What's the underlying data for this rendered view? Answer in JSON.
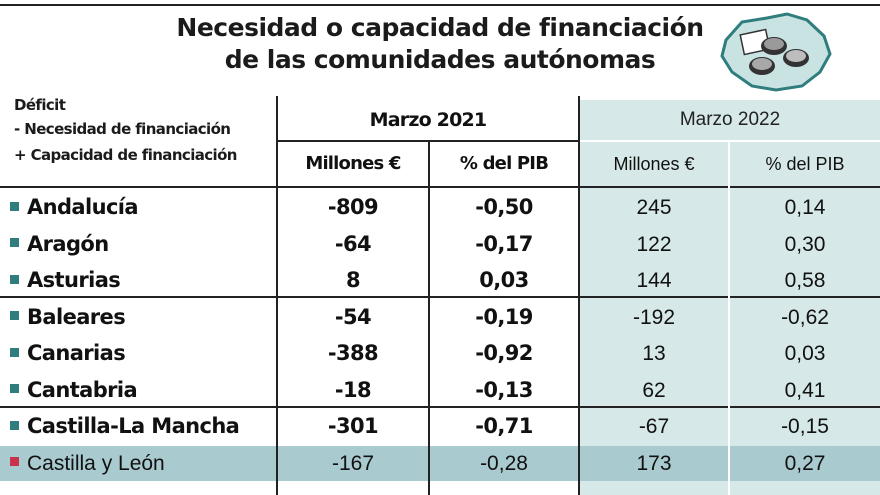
{
  "title": {
    "line1": "Necesidad o capacidad de financiación",
    "line2": "de las comunidades autónomas"
  },
  "legend": {
    "deficit": "Déficit",
    "negative": "- Necesidad de financiación",
    "positive": "+ Capacidad de financiación"
  },
  "groups": {
    "first": "Marzo 2021",
    "second": "Marzo 2022"
  },
  "columns": {
    "millions": "Millones €",
    "pib": "% del PIB"
  },
  "colors": {
    "shade": "#d6e8e8",
    "highlight": "#a9cbcf",
    "bullet": "#2f7d7d",
    "highlight_bullet": "#c8334a"
  },
  "rows": [
    {
      "name": "Andalucía",
      "m2021": "-809",
      "p2021": "-0,50",
      "m2022": "245",
      "p2022": "0,14"
    },
    {
      "name": "Aragón",
      "m2021": "-64",
      "p2021": "-0,17",
      "m2022": "122",
      "p2022": "0,30"
    },
    {
      "name": "Asturias",
      "m2021": "8",
      "p2021": "0,03",
      "m2022": "144",
      "p2022": "0,58"
    },
    {
      "name": "Baleares",
      "m2021": "-54",
      "p2021": "-0,19",
      "m2022": "-192",
      "p2022": "-0,62"
    },
    {
      "name": "Canarias",
      "m2021": "-388",
      "p2021": "-0,92",
      "m2022": "13",
      "p2022": "0,03"
    },
    {
      "name": "Cantabria",
      "m2021": "-18",
      "p2021": "-0,13",
      "m2022": "62",
      "p2022": "0,41"
    },
    {
      "name": "Castilla-La Mancha",
      "m2021": "-301",
      "p2021": "-0,71",
      "m2022": "-67",
      "p2022": "-0,15"
    },
    {
      "name": "Castilla y León",
      "m2021": "-167",
      "p2021": "-0,28",
      "m2022": "173",
      "p2022": "0,27",
      "highlight": true
    }
  ]
}
